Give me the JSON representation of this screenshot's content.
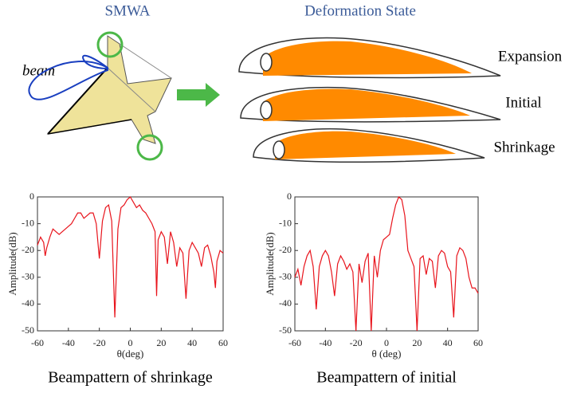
{
  "figure": {
    "left_title": "SMWA",
    "right_title": "Deformation State",
    "beam_label": "beam",
    "states": [
      "Expansion",
      "Initial",
      "Shrinkage"
    ]
  },
  "chart_data": [
    {
      "type": "line",
      "caption": "Beampattern of shrinkage",
      "xlabel": "θ(deg)",
      "ylabel": "Amplitude(dB)",
      "color": "#e8141c",
      "x": [
        -60,
        -58,
        -56,
        -55,
        -54,
        -52,
        -50,
        -48,
        -46,
        -44,
        -42,
        -40,
        -38,
        -36,
        -34,
        -32,
        -30,
        -28,
        -26,
        -24,
        -22,
        -20,
        -18,
        -16,
        -14,
        -12,
        -10,
        -8,
        -6,
        -4,
        -2,
        0,
        2,
        4,
        6,
        8,
        10,
        12,
        14,
        16,
        17,
        18,
        20,
        22,
        24,
        26,
        28,
        30,
        32,
        34,
        36,
        38,
        40,
        42,
        44,
        46,
        48,
        50,
        52,
        54,
        55,
        56,
        58,
        60
      ],
      "values": [
        -18,
        -15,
        -17,
        -22,
        -19,
        -15,
        -12,
        -13,
        -14,
        -13,
        -12,
        -11,
        -10,
        -8,
        -6,
        -6,
        -8,
        -7,
        -6,
        -6,
        -10,
        -23,
        -9,
        -4,
        -3,
        -9,
        -45,
        -12,
        -4,
        -3,
        -1,
        0,
        -2,
        -4,
        -3,
        -5,
        -6,
        -8,
        -10,
        -13,
        -37,
        -16,
        -13,
        -15,
        -25,
        -13,
        -17,
        -26,
        -19,
        -21,
        -38,
        -20,
        -17,
        -19,
        -21,
        -26,
        -19,
        -18,
        -22,
        -28,
        -34,
        -24,
        -20,
        -21
      ],
      "xlim": [
        -60,
        60
      ],
      "ylim": [
        -50,
        0
      ],
      "xticks": [
        -60,
        -40,
        -20,
        0,
        20,
        40,
        60
      ],
      "yticks": [
        0,
        -10,
        -20,
        -30,
        -40,
        -50
      ]
    },
    {
      "type": "line",
      "caption": "Beampattern of initial",
      "xlabel": "θ (deg)",
      "ylabel": "Amplitude(dB)",
      "color": "#e8141c",
      "x": [
        -60,
        -58,
        -56,
        -54,
        -52,
        -50,
        -48,
        -46,
        -44,
        -42,
        -40,
        -38,
        -36,
        -34,
        -32,
        -30,
        -28,
        -26,
        -24,
        -22,
        -20,
        -18,
        -16,
        -14,
        -12,
        -10,
        -8,
        -6,
        -4,
        -2,
        0,
        2,
        4,
        6,
        8,
        10,
        12,
        14,
        16,
        18,
        20,
        22,
        24,
        26,
        28,
        30,
        32,
        34,
        36,
        38,
        40,
        42,
        44,
        46,
        48,
        50,
        52,
        54,
        56,
        58,
        60
      ],
      "values": [
        -30,
        -27,
        -33,
        -26,
        -22,
        -20,
        -26,
        -42,
        -26,
        -22,
        -20,
        -22,
        -28,
        -37,
        -25,
        -22,
        -24,
        -27,
        -25,
        -28,
        -50,
        -25,
        -32,
        -24,
        -21,
        -50,
        -22,
        -30,
        -20,
        -16,
        -15,
        -14,
        -8,
        -3,
        0,
        -1,
        -7,
        -20,
        -23,
        -26,
        -50,
        -23,
        -22,
        -29,
        -23,
        -24,
        -34,
        -22,
        -20,
        -21,
        -26,
        -28,
        -45,
        -22,
        -19,
        -20,
        -23,
        -30,
        -34,
        -34,
        -36
      ],
      "xlim": [
        -60,
        60
      ],
      "ylim": [
        -50,
        0
      ],
      "xticks": [
        -60,
        -40,
        -20,
        0,
        20,
        40,
        60
      ],
      "yticks": [
        0,
        -10,
        -20,
        -30,
        -40,
        -50
      ]
    }
  ]
}
